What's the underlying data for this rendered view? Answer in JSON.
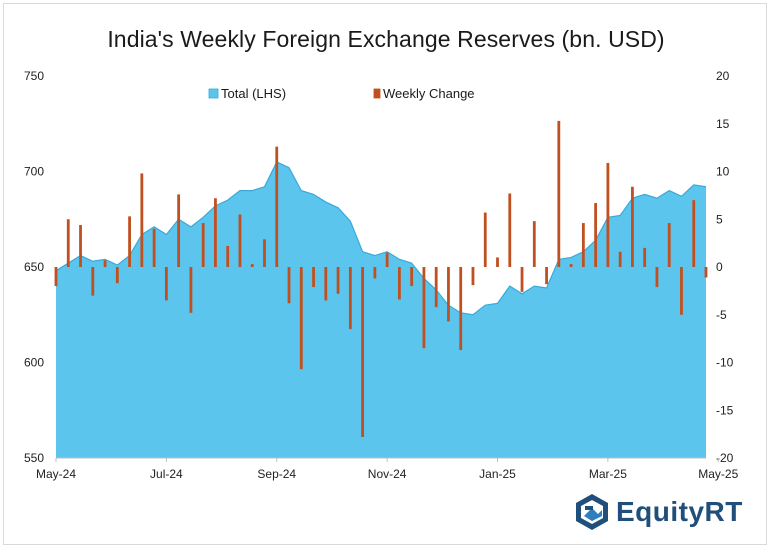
{
  "title": "India's Weekly Foreign Exchange Reserves (bn. USD)",
  "brand": "EquityRT",
  "colors": {
    "area_fill": "#5bc5ee",
    "area_line": "#3aa9d9",
    "bar": "#c0501f",
    "axis_text": "#222222",
    "brand": "#1f4f7a"
  },
  "chart_data": {
    "type": "area+bar",
    "legend": [
      "Total (LHS)",
      "Weekly Change"
    ],
    "legend_position": "top",
    "x_tick_labels": [
      "May-24",
      "Jul-24",
      "Sep-24",
      "Nov-24",
      "Jan-25",
      "Mar-25",
      "May-25"
    ],
    "x_tick_index": [
      0,
      9,
      18,
      27,
      36,
      45,
      54
    ],
    "y_left": {
      "min": 550,
      "max": 750,
      "ticks": [
        "550",
        "600",
        "650",
        "700",
        "750"
      ]
    },
    "y_right": {
      "min": -20,
      "max": 20,
      "ticks": [
        "-20",
        "-15",
        "-10",
        "-5",
        "0",
        "5",
        "10",
        "15",
        "20"
      ]
    },
    "grid": false,
    "series": [
      {
        "name": "Total (LHS)",
        "type": "area",
        "axis": "left",
        "values": [
          648,
          652,
          656,
          653,
          654,
          651,
          656,
          667,
          671,
          667,
          675,
          671,
          676,
          682,
          685,
          690,
          690,
          692,
          705,
          702,
          690,
          688,
          684,
          681,
          674,
          658,
          656,
          658,
          654,
          652,
          644,
          638,
          630,
          626,
          625,
          630,
          631,
          640,
          636,
          640,
          639,
          654,
          655,
          658,
          664,
          676,
          677,
          686,
          688,
          686,
          690,
          687,
          693,
          692
        ]
      },
      {
        "name": "Weekly Change",
        "type": "bar",
        "axis": "right",
        "values": [
          -2.0,
          5.0,
          4.4,
          -3.0,
          0.7,
          -1.7,
          5.3,
          9.8,
          4.0,
          -3.5,
          7.6,
          -4.8,
          4.6,
          7.2,
          2.2,
          5.5,
          0.3,
          2.9,
          12.6,
          -3.8,
          -10.7,
          -2.1,
          -3.5,
          -2.8,
          -6.5,
          -17.8,
          -1.2,
          1.5,
          -3.4,
          -2.0,
          -8.5,
          -4.2,
          -5.7,
          -8.7,
          -1.9,
          5.7,
          1.0,
          7.7,
          -2.6,
          4.8,
          -1.8,
          15.3,
          0.3,
          4.6,
          6.7,
          10.9,
          1.6,
          8.4,
          2.0,
          -2.1,
          4.6,
          -5.0,
          7.0,
          -1.1
        ]
      }
    ]
  }
}
